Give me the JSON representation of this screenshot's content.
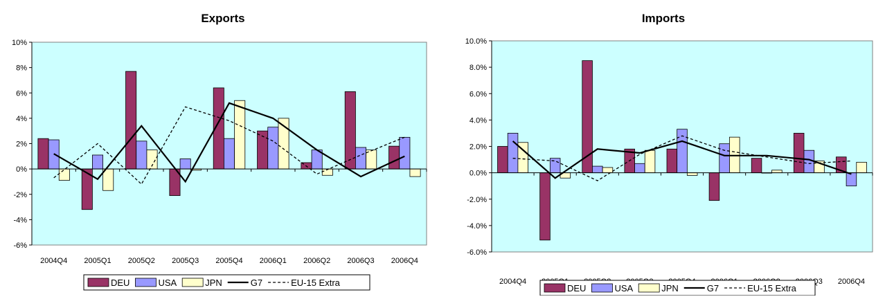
{
  "chart_data": [
    {
      "type": "bar",
      "title": "Exports",
      "categories": [
        "2004Q4",
        "2005Q1",
        "2005Q2",
        "2005Q3",
        "2005Q4",
        "2006Q1",
        "2006Q2",
        "2006Q3",
        "2006Q4"
      ],
      "ylim": [
        -6,
        10
      ],
      "yticks": [
        "10%",
        "8%",
        "6%",
        "4%",
        "2%",
        "0%",
        "-2%",
        "-4%",
        "-6%"
      ],
      "ytick_values": [
        10,
        8,
        6,
        4,
        2,
        0,
        -2,
        -4,
        -6
      ],
      "grid": false,
      "legend_position": "bottom",
      "series": [
        {
          "name": "DEU",
          "kind": "bar",
          "color": "#993366",
          "values": [
            2.4,
            -3.2,
            7.7,
            -2.1,
            6.4,
            3.0,
            0.5,
            6.1,
            1.8
          ]
        },
        {
          "name": "USA",
          "kind": "bar",
          "color": "#9999ff",
          "values": [
            2.3,
            1.1,
            2.2,
            0.8,
            2.4,
            3.3,
            1.5,
            1.7,
            2.5
          ]
        },
        {
          "name": "JPN",
          "kind": "bar",
          "color": "#ffffcc",
          "values": [
            -0.9,
            -1.7,
            1.5,
            -0.1,
            5.4,
            4.0,
            -0.5,
            1.5,
            -0.6
          ]
        },
        {
          "name": "G7",
          "kind": "line",
          "color": "#000000",
          "values": [
            1.2,
            -0.8,
            3.4,
            -1.0,
            5.2,
            4.0,
            1.5,
            -0.6,
            1.0
          ]
        },
        {
          "name": "EU-15 Extra",
          "kind": "dashed-line",
          "color": "#000000",
          "values": [
            -0.7,
            2.0,
            -1.2,
            4.9,
            3.8,
            2.2,
            -0.4,
            1.1,
            2.5
          ]
        }
      ]
    },
    {
      "type": "bar",
      "title": "Imports",
      "categories": [
        "2004Q4",
        "2005Q1",
        "2005Q2",
        "2005Q3",
        "2005Q4",
        "2006Q1",
        "2006Q2",
        "2006Q3",
        "2006Q4"
      ],
      "ylim": [
        -6,
        10
      ],
      "yticks": [
        "10.0%",
        "8.0%",
        "6.0%",
        "4.0%",
        "2.0%",
        "0.0%",
        "-2.0%",
        "-4.0%",
        "-6.0%"
      ],
      "ytick_values": [
        10,
        8,
        6,
        4,
        2,
        0,
        -2,
        -4,
        -6
      ],
      "grid": false,
      "legend_position": "bottom",
      "series": [
        {
          "name": "DEU",
          "kind": "bar",
          "color": "#993366",
          "values": [
            2.0,
            -5.1,
            8.5,
            1.8,
            1.8,
            -2.1,
            1.1,
            3.0,
            1.2
          ]
        },
        {
          "name": "USA",
          "kind": "bar",
          "color": "#9999ff",
          "values": [
            3.0,
            1.1,
            0.5,
            0.7,
            3.3,
            2.2,
            0.0,
            1.7,
            -1.0
          ]
        },
        {
          "name": "JPN",
          "kind": "bar",
          "color": "#ffffcc",
          "values": [
            2.3,
            -0.4,
            0.4,
            1.7,
            -0.2,
            2.7,
            0.2,
            0.9,
            0.8
          ]
        },
        {
          "name": "G7",
          "kind": "line",
          "color": "#000000",
          "values": [
            2.4,
            -0.4,
            1.8,
            1.5,
            2.4,
            1.3,
            1.3,
            1.0,
            -0.1
          ]
        },
        {
          "name": "EU-15 Extra",
          "kind": "dashed-line",
          "color": "#000000",
          "values": [
            1.1,
            0.9,
            -0.6,
            1.4,
            2.8,
            1.7,
            1.2,
            0.7,
            0.9
          ]
        }
      ]
    }
  ],
  "colors": {
    "plot_background": "#ccffff",
    "axis": "#000000"
  }
}
